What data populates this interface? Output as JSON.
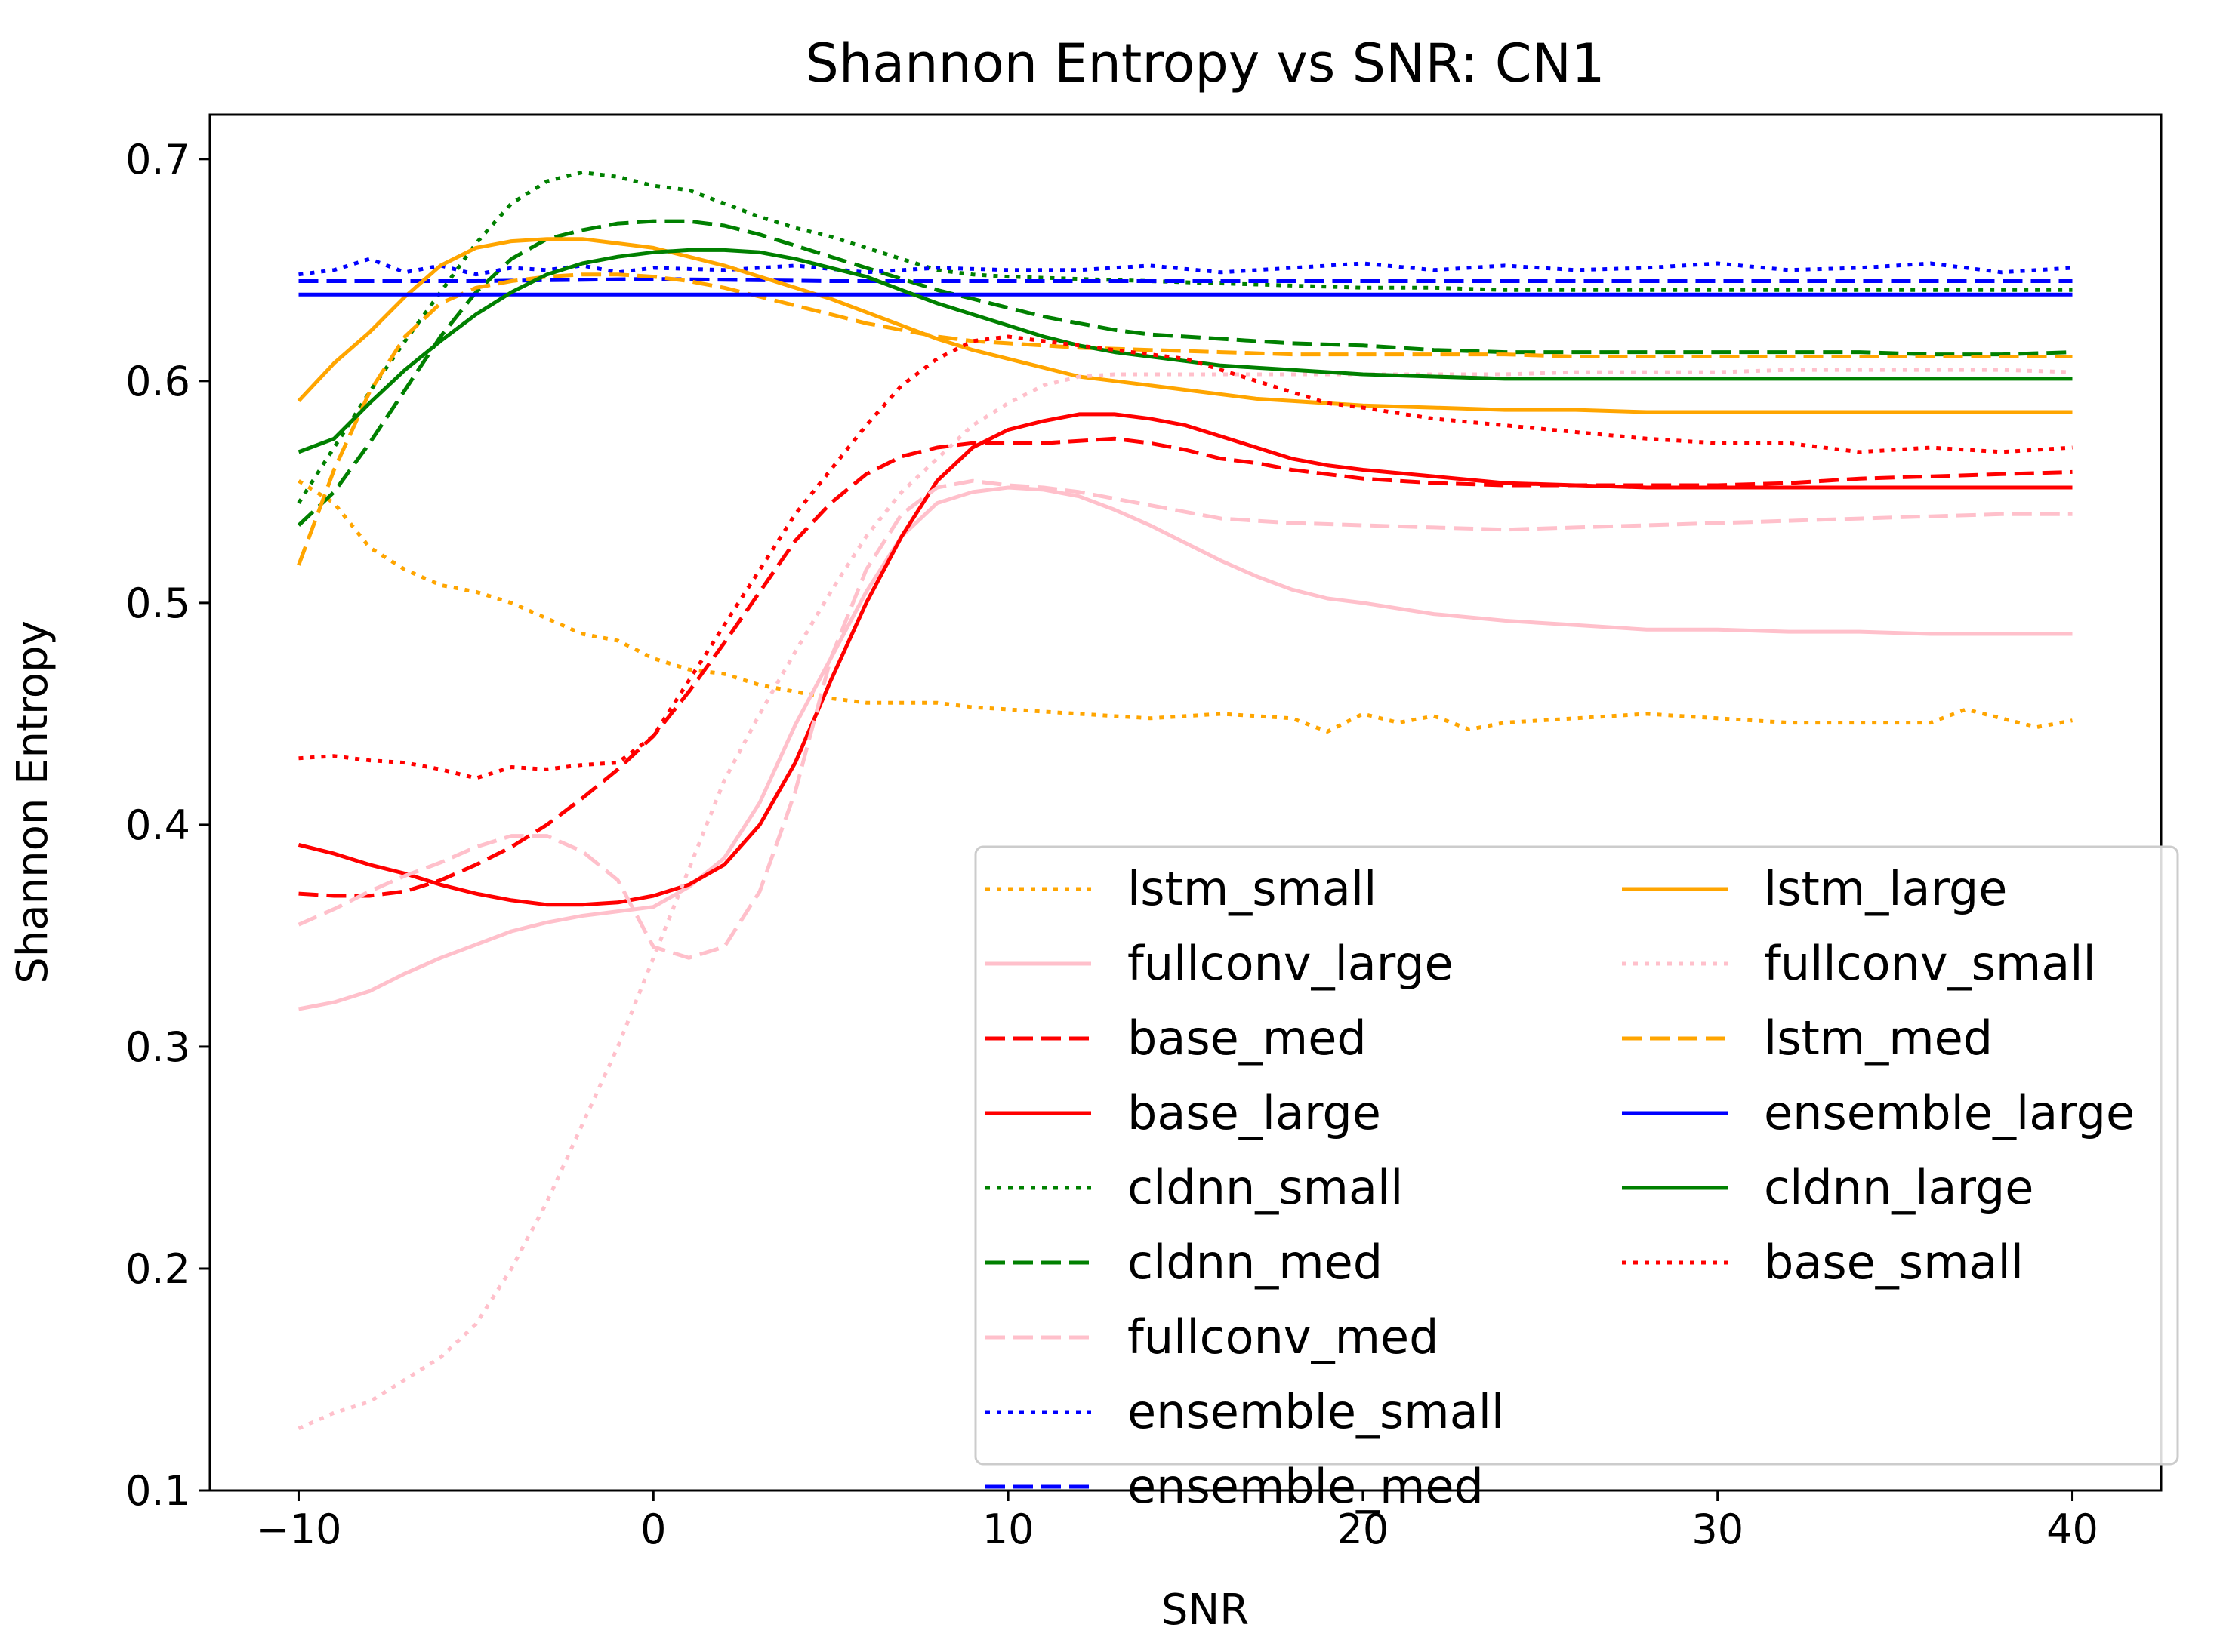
{
  "chart_data": {
    "type": "line",
    "title": "Shannon Entropy vs SNR: CN1",
    "xlabel": "SNR",
    "ylabel": "Shannon Entropy",
    "xlim": [
      -12.5,
      42.5
    ],
    "ylim": [
      0.1,
      0.72
    ],
    "xticks": [
      -10,
      0,
      10,
      20,
      30,
      40
    ],
    "xtick_labels": [
      "−10",
      "0",
      "10",
      "20",
      "30",
      "40"
    ],
    "yticks": [
      0.1,
      0.2,
      0.3,
      0.4,
      0.5,
      0.6,
      0.7
    ],
    "ytick_labels": [
      "0.1",
      "0.2",
      "0.3",
      "0.4",
      "0.5",
      "0.6",
      "0.7"
    ],
    "grid": false,
    "legend_position": "lower-right",
    "legend_columns": 2,
    "series": [
      {
        "name": "lstm_small",
        "color": "#ffa500",
        "style": "dotted",
        "x": [
          -10,
          -9,
          -8,
          -7,
          -6,
          -5,
          -4,
          -3,
          -2,
          -1,
          0,
          1,
          2,
          3,
          4,
          5,
          6,
          7,
          8,
          9,
          10,
          12,
          14,
          16,
          18,
          19,
          20,
          21,
          22,
          23,
          24,
          26,
          28,
          30,
          32,
          34,
          36,
          37,
          38,
          39,
          40
        ],
        "y": [
          0.555,
          0.545,
          0.525,
          0.515,
          0.508,
          0.505,
          0.5,
          0.493,
          0.486,
          0.483,
          0.475,
          0.47,
          0.468,
          0.463,
          0.46,
          0.457,
          0.455,
          0.455,
          0.455,
          0.453,
          0.452,
          0.45,
          0.448,
          0.45,
          0.448,
          0.442,
          0.45,
          0.446,
          0.449,
          0.443,
          0.446,
          0.448,
          0.45,
          0.448,
          0.446,
          0.446,
          0.446,
          0.452,
          0.448,
          0.444,
          0.447
        ]
      },
      {
        "name": "fullconv_large",
        "color": "#ffc0cb",
        "style": "solid",
        "x": [
          -10,
          -9,
          -8,
          -7,
          -6,
          -5,
          -4,
          -3,
          -2,
          -1,
          0,
          1,
          2,
          3,
          4,
          5,
          6,
          7,
          8,
          9,
          10,
          11,
          12,
          13,
          14,
          15,
          16,
          17,
          18,
          19,
          20,
          22,
          24,
          26,
          28,
          30,
          32,
          34,
          36,
          38,
          40
        ],
        "y": [
          0.317,
          0.32,
          0.325,
          0.333,
          0.34,
          0.346,
          0.352,
          0.356,
          0.359,
          0.361,
          0.363,
          0.372,
          0.385,
          0.41,
          0.445,
          0.475,
          0.505,
          0.53,
          0.545,
          0.55,
          0.552,
          0.551,
          0.548,
          0.542,
          0.535,
          0.527,
          0.519,
          0.512,
          0.506,
          0.502,
          0.5,
          0.495,
          0.492,
          0.49,
          0.488,
          0.488,
          0.487,
          0.487,
          0.486,
          0.486,
          0.486
        ]
      },
      {
        "name": "base_med",
        "color": "#ff0000",
        "style": "dashed",
        "x": [
          -10,
          -9,
          -8,
          -7,
          -6,
          -5,
          -4,
          -3,
          -2,
          -1,
          0,
          1,
          2,
          3,
          4,
          5,
          6,
          7,
          8,
          9,
          10,
          11,
          12,
          13,
          14,
          15,
          16,
          17,
          18,
          20,
          22,
          24,
          26,
          28,
          30,
          32,
          34,
          36,
          38,
          40
        ],
        "y": [
          0.369,
          0.368,
          0.368,
          0.37,
          0.375,
          0.382,
          0.39,
          0.4,
          0.412,
          0.425,
          0.44,
          0.46,
          0.482,
          0.505,
          0.528,
          0.545,
          0.558,
          0.566,
          0.57,
          0.572,
          0.572,
          0.572,
          0.573,
          0.574,
          0.572,
          0.569,
          0.565,
          0.563,
          0.56,
          0.556,
          0.554,
          0.553,
          0.553,
          0.553,
          0.553,
          0.554,
          0.556,
          0.557,
          0.558,
          0.559
        ]
      },
      {
        "name": "base_large",
        "color": "#ff0000",
        "style": "solid",
        "x": [
          -10,
          -9,
          -8,
          -7,
          -6,
          -5,
          -4,
          -3,
          -2,
          -1,
          0,
          1,
          2,
          3,
          4,
          5,
          6,
          7,
          8,
          9,
          10,
          11,
          12,
          13,
          14,
          15,
          16,
          17,
          18,
          19,
          20,
          22,
          24,
          26,
          28,
          30,
          32,
          34,
          36,
          38,
          40
        ],
        "y": [
          0.391,
          0.387,
          0.382,
          0.378,
          0.373,
          0.369,
          0.366,
          0.364,
          0.364,
          0.365,
          0.368,
          0.373,
          0.382,
          0.4,
          0.428,
          0.465,
          0.5,
          0.53,
          0.555,
          0.57,
          0.578,
          0.582,
          0.585,
          0.585,
          0.583,
          0.58,
          0.575,
          0.57,
          0.565,
          0.562,
          0.56,
          0.557,
          0.554,
          0.553,
          0.552,
          0.552,
          0.552,
          0.552,
          0.552,
          0.552,
          0.552
        ]
      },
      {
        "name": "cldnn_small",
        "color": "#008000",
        "style": "dotted",
        "x": [
          -10,
          -9,
          -8,
          -7,
          -6,
          -5,
          -4,
          -3,
          -2,
          -1,
          0,
          1,
          2,
          3,
          4,
          5,
          6,
          7,
          8,
          9,
          10,
          12,
          14,
          16,
          18,
          20,
          22,
          24,
          26,
          28,
          30,
          32,
          34,
          36,
          38,
          40
        ],
        "y": [
          0.545,
          0.57,
          0.595,
          0.618,
          0.64,
          0.662,
          0.68,
          0.69,
          0.694,
          0.692,
          0.688,
          0.686,
          0.68,
          0.674,
          0.669,
          0.665,
          0.66,
          0.655,
          0.65,
          0.648,
          0.647,
          0.646,
          0.645,
          0.644,
          0.643,
          0.642,
          0.642,
          0.641,
          0.641,
          0.641,
          0.641,
          0.641,
          0.641,
          0.641,
          0.641,
          0.641
        ]
      },
      {
        "name": "cldnn_med",
        "color": "#008000",
        "style": "dashed",
        "x": [
          -10,
          -9,
          -8,
          -7,
          -6,
          -5,
          -4,
          -3,
          -2,
          -1,
          0,
          1,
          2,
          3,
          4,
          5,
          6,
          7,
          8,
          9,
          10,
          11,
          12,
          13,
          14,
          15,
          16,
          18,
          20,
          22,
          24,
          26,
          28,
          30,
          32,
          34,
          36,
          38,
          40
        ],
        "y": [
          0.535,
          0.55,
          0.572,
          0.596,
          0.62,
          0.64,
          0.655,
          0.664,
          0.668,
          0.671,
          0.672,
          0.672,
          0.67,
          0.666,
          0.661,
          0.656,
          0.651,
          0.646,
          0.641,
          0.637,
          0.633,
          0.629,
          0.626,
          0.623,
          0.621,
          0.62,
          0.619,
          0.617,
          0.616,
          0.614,
          0.613,
          0.613,
          0.613,
          0.613,
          0.613,
          0.613,
          0.612,
          0.612,
          0.613
        ]
      },
      {
        "name": "fullconv_med",
        "color": "#ffc0cb",
        "style": "dashed",
        "x": [
          -10,
          -9,
          -8,
          -7,
          -6,
          -5,
          -4,
          -3,
          -2,
          -1,
          0,
          1,
          2,
          3,
          4,
          5,
          6,
          7,
          8,
          9,
          10,
          11,
          12,
          13,
          14,
          15,
          16,
          18,
          20,
          22,
          24,
          26,
          28,
          30,
          32,
          34,
          36,
          38,
          40
        ],
        "y": [
          0.355,
          0.362,
          0.37,
          0.377,
          0.383,
          0.39,
          0.395,
          0.395,
          0.388,
          0.375,
          0.345,
          0.34,
          0.345,
          0.37,
          0.415,
          0.475,
          0.515,
          0.54,
          0.552,
          0.555,
          0.553,
          0.552,
          0.55,
          0.547,
          0.544,
          0.541,
          0.538,
          0.536,
          0.535,
          0.534,
          0.533,
          0.534,
          0.535,
          0.536,
          0.537,
          0.538,
          0.539,
          0.54,
          0.54
        ]
      },
      {
        "name": "ensemble_small",
        "color": "#0000ff",
        "style": "dotted",
        "x": [
          -10,
          -9,
          -8,
          -7,
          -6,
          -5,
          -4,
          -3,
          -2,
          -1,
          0,
          2,
          4,
          6,
          8,
          10,
          12,
          14,
          16,
          18,
          20,
          22,
          24,
          26,
          28,
          30,
          32,
          34,
          36,
          38,
          40
        ],
        "y": [
          0.648,
          0.65,
          0.655,
          0.649,
          0.652,
          0.648,
          0.651,
          0.65,
          0.652,
          0.649,
          0.651,
          0.65,
          0.652,
          0.649,
          0.651,
          0.65,
          0.65,
          0.652,
          0.649,
          0.651,
          0.653,
          0.65,
          0.652,
          0.65,
          0.651,
          0.653,
          0.65,
          0.651,
          0.653,
          0.649,
          0.651
        ]
      },
      {
        "name": "ensemble_med",
        "color": "#0000ff",
        "style": "dashed",
        "x": [
          -10,
          -5,
          0,
          5,
          10,
          15,
          20,
          25,
          30,
          35,
          40
        ],
        "y": [
          0.645,
          0.645,
          0.646,
          0.645,
          0.645,
          0.645,
          0.645,
          0.645,
          0.645,
          0.645,
          0.645
        ]
      },
      {
        "name": "lstm_large",
        "color": "#ffa500",
        "style": "solid",
        "x": [
          -10,
          -9,
          -8,
          -7,
          -6,
          -5,
          -4,
          -3,
          -2,
          -1,
          0,
          1,
          2,
          3,
          4,
          5,
          6,
          7,
          8,
          9,
          10,
          11,
          12,
          13,
          14,
          15,
          16,
          17,
          18,
          20,
          22,
          24,
          26,
          28,
          30,
          32,
          34,
          36,
          38,
          40
        ],
        "y": [
          0.591,
          0.608,
          0.622,
          0.638,
          0.652,
          0.66,
          0.663,
          0.664,
          0.664,
          0.662,
          0.66,
          0.656,
          0.652,
          0.647,
          0.642,
          0.637,
          0.631,
          0.625,
          0.619,
          0.614,
          0.61,
          0.606,
          0.602,
          0.6,
          0.598,
          0.596,
          0.594,
          0.592,
          0.591,
          0.589,
          0.588,
          0.587,
          0.587,
          0.586,
          0.586,
          0.586,
          0.586,
          0.586,
          0.586,
          0.586
        ]
      },
      {
        "name": "fullconv_small",
        "color": "#ffc0cb",
        "style": "dotted",
        "x": [
          -10,
          -9,
          -8,
          -7,
          -6,
          -5,
          -4,
          -3,
          -2,
          -1,
          0,
          1,
          2,
          3,
          4,
          5,
          6,
          7,
          8,
          9,
          10,
          11,
          12,
          13,
          14,
          16,
          18,
          20,
          22,
          24,
          26,
          28,
          30,
          32,
          34,
          36,
          38,
          40
        ],
        "y": [
          0.128,
          0.135,
          0.14,
          0.15,
          0.16,
          0.175,
          0.2,
          0.23,
          0.265,
          0.3,
          0.34,
          0.38,
          0.42,
          0.45,
          0.478,
          0.505,
          0.53,
          0.55,
          0.565,
          0.58,
          0.59,
          0.598,
          0.602,
          0.603,
          0.603,
          0.603,
          0.603,
          0.603,
          0.603,
          0.603,
          0.604,
          0.604,
          0.604,
          0.605,
          0.605,
          0.605,
          0.605,
          0.604
        ]
      },
      {
        "name": "lstm_med",
        "color": "#ffa500",
        "style": "dashed",
        "x": [
          -10,
          -9,
          -8,
          -7,
          -6,
          -5,
          -4,
          -3,
          -2,
          -1,
          0,
          1,
          2,
          3,
          4,
          5,
          6,
          7,
          8,
          9,
          10,
          12,
          14,
          16,
          18,
          20,
          22,
          24,
          26,
          28,
          30,
          32,
          34,
          36,
          38,
          40
        ],
        "y": [
          0.517,
          0.56,
          0.595,
          0.62,
          0.635,
          0.642,
          0.645,
          0.647,
          0.648,
          0.648,
          0.647,
          0.645,
          0.642,
          0.638,
          0.634,
          0.63,
          0.626,
          0.623,
          0.62,
          0.618,
          0.617,
          0.615,
          0.614,
          0.613,
          0.612,
          0.612,
          0.612,
          0.612,
          0.611,
          0.611,
          0.611,
          0.611,
          0.611,
          0.611,
          0.611,
          0.611
        ]
      },
      {
        "name": "ensemble_large",
        "color": "#0000ff",
        "style": "solid",
        "x": [
          -10,
          -5,
          0,
          5,
          10,
          15,
          20,
          25,
          30,
          35,
          40
        ],
        "y": [
          0.639,
          0.639,
          0.639,
          0.639,
          0.639,
          0.639,
          0.639,
          0.639,
          0.639,
          0.639,
          0.639
        ]
      },
      {
        "name": "cldnn_large",
        "color": "#008000",
        "style": "solid",
        "x": [
          -10,
          -9,
          -8,
          -7,
          -6,
          -5,
          -4,
          -3,
          -2,
          -1,
          0,
          1,
          2,
          3,
          4,
          5,
          6,
          7,
          8,
          9,
          10,
          11,
          12,
          13,
          14,
          15,
          16,
          17,
          18,
          20,
          22,
          24,
          26,
          28,
          30,
          32,
          34,
          36,
          38,
          40
        ],
        "y": [
          0.568,
          0.574,
          0.59,
          0.605,
          0.618,
          0.63,
          0.64,
          0.648,
          0.653,
          0.656,
          0.658,
          0.659,
          0.659,
          0.658,
          0.655,
          0.651,
          0.647,
          0.641,
          0.635,
          0.63,
          0.625,
          0.62,
          0.616,
          0.613,
          0.611,
          0.609,
          0.607,
          0.606,
          0.605,
          0.603,
          0.602,
          0.601,
          0.601,
          0.601,
          0.601,
          0.601,
          0.601,
          0.601,
          0.601,
          0.601
        ]
      },
      {
        "name": "base_small",
        "color": "#ff0000",
        "style": "dotted",
        "x": [
          -10,
          -9,
          -8,
          -7,
          -6,
          -5,
          -4,
          -3,
          -2,
          -1,
          0,
          1,
          2,
          3,
          4,
          5,
          6,
          7,
          8,
          9,
          10,
          11,
          12,
          13,
          14,
          15,
          16,
          17,
          18,
          19,
          20,
          22,
          24,
          26,
          28,
          30,
          32,
          34,
          36,
          38,
          40
        ],
        "y": [
          0.43,
          0.431,
          0.429,
          0.428,
          0.425,
          0.421,
          0.426,
          0.425,
          0.427,
          0.428,
          0.44,
          0.465,
          0.49,
          0.515,
          0.54,
          0.56,
          0.58,
          0.598,
          0.61,
          0.618,
          0.62,
          0.618,
          0.616,
          0.614,
          0.612,
          0.61,
          0.605,
          0.6,
          0.595,
          0.59,
          0.588,
          0.583,
          0.58,
          0.577,
          0.574,
          0.572,
          0.572,
          0.568,
          0.57,
          0.568,
          0.57
        ]
      }
    ]
  }
}
